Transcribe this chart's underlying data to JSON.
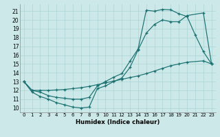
{
  "title": "",
  "xlabel": "Humidex (Indice chaleur)",
  "bg_color": "#cce8e8",
  "line_color": "#1a7070",
  "grid_color": "#aad4d4",
  "xlim": [
    -0.5,
    23.5
  ],
  "ylim": [
    9.5,
    21.8
  ],
  "yticks": [
    10,
    11,
    12,
    13,
    14,
    15,
    16,
    17,
    18,
    19,
    20,
    21
  ],
  "xticks": [
    0,
    1,
    2,
    3,
    4,
    5,
    6,
    7,
    8,
    9,
    10,
    11,
    12,
    13,
    14,
    15,
    16,
    17,
    18,
    19,
    20,
    21,
    22,
    23
  ],
  "line1_x": [
    0,
    1,
    2,
    3,
    4,
    5,
    6,
    7,
    8,
    9,
    10,
    11,
    12,
    13,
    14,
    15,
    16,
    17,
    18,
    19,
    20,
    22,
    23
  ],
  "line1_y": [
    13,
    11.8,
    11.3,
    11.0,
    10.6,
    10.35,
    10.1,
    10.0,
    10.1,
    12.2,
    12.5,
    13.0,
    13.4,
    14.6,
    16.6,
    18.5,
    19.5,
    20.0,
    19.8,
    19.8,
    20.5,
    20.8,
    15.0
  ],
  "line2_x": [
    0,
    1,
    2,
    3,
    4,
    5,
    6,
    7,
    8,
    9,
    10,
    11,
    12,
    13,
    14,
    15,
    16,
    17,
    18,
    19,
    20,
    21,
    22,
    23
  ],
  "line2_y": [
    13,
    12.0,
    11.8,
    11.4,
    11.2,
    11.1,
    11.0,
    11.0,
    11.2,
    12.5,
    13.0,
    13.5,
    13.9,
    15.3,
    16.7,
    21.1,
    21.0,
    21.2,
    21.15,
    20.7,
    20.4,
    18.3,
    16.4,
    15.0
  ],
  "line3_x": [
    0,
    1,
    2,
    3,
    4,
    5,
    6,
    7,
    8,
    9,
    10,
    11,
    12,
    13,
    14,
    15,
    16,
    17,
    18,
    19,
    20,
    22,
    23
  ],
  "line3_y": [
    13,
    12.0,
    12.0,
    12.0,
    12.05,
    12.1,
    12.2,
    12.3,
    12.45,
    12.65,
    12.85,
    13.05,
    13.25,
    13.45,
    13.65,
    13.9,
    14.2,
    14.5,
    14.8,
    15.0,
    15.2,
    15.35,
    15.0
  ]
}
